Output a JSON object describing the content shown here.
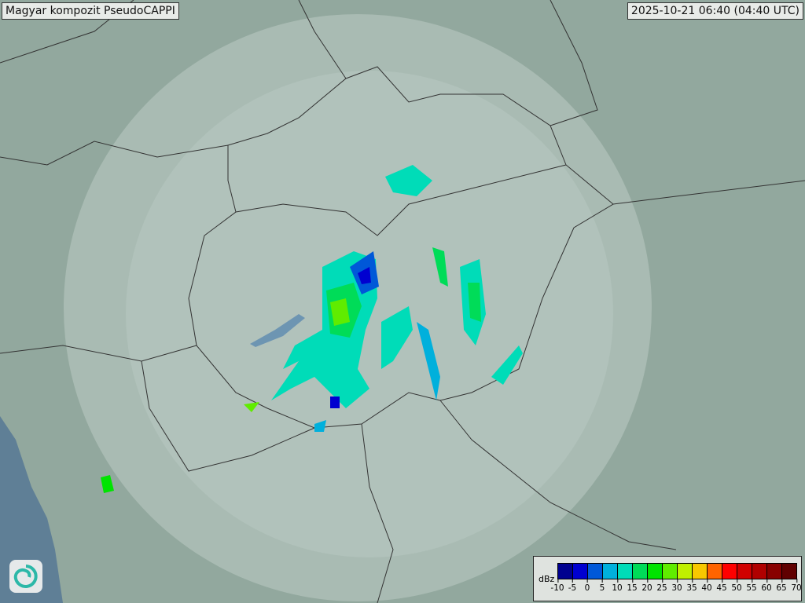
{
  "title": "Magyar kompozit  PseudoCAPPI",
  "timestamp": "2025-10-21 06:40 (04:40 UTC)",
  "legend": {
    "unit": "dBz",
    "ticks": [
      "-10",
      "-5",
      "0",
      "5",
      "10",
      "15",
      "20",
      "25",
      "30",
      "35",
      "40",
      "45",
      "50",
      "55",
      "60",
      "65",
      "70"
    ],
    "colors": [
      "#00008f",
      "#0000d0",
      "#0058d8",
      "#00b0dc",
      "#00dcb8",
      "#00dc58",
      "#00e400",
      "#60ec00",
      "#c0f000",
      "#f8c800",
      "#ff6400",
      "#ff0000",
      "#d00000",
      "#b00000",
      "#880000",
      "#600000"
    ]
  },
  "map": {
    "background": "#8fa59b",
    "coverage": "#b3c4bd",
    "sea": "#5f7f96",
    "borders": "#333333"
  },
  "logo": "omsz-swirl-logo"
}
